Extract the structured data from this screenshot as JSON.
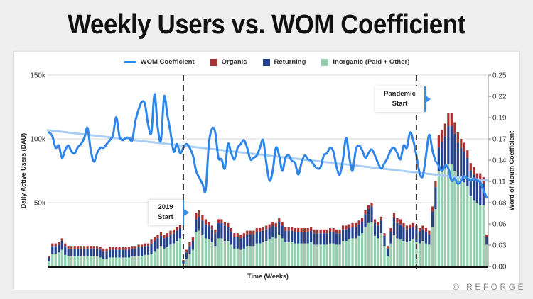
{
  "title": "Weekly Users vs. WOM Coefficient",
  "legend": [
    {
      "label": "WOM Coefficient",
      "type": "line",
      "color": "#2f86e8"
    },
    {
      "label": "Organic",
      "type": "box",
      "color": "#a83232"
    },
    {
      "label": "Returning",
      "type": "box",
      "color": "#24428c"
    },
    {
      "label": "Inorganic (Paid + Other)",
      "type": "box",
      "color": "#95cfae"
    }
  ],
  "annotations": {
    "start_2019": {
      "line1": "2019",
      "line2": "Start"
    },
    "pandemic": {
      "line1": "Pandemic",
      "line2": "Start"
    }
  },
  "brand": "© REFORGE",
  "chart_data": {
    "type": "bar",
    "title": "Weekly Users vs. WOM Coefficient",
    "xlabel": "Time (Weeks)",
    "ylabel": "Daily Active Users (DAU)",
    "y2label": "Word of Mouth Coefficient",
    "ylim": [
      0,
      150000
    ],
    "y2lim": [
      0,
      0.25
    ],
    "yticks": [
      "150k",
      "100k",
      "50k"
    ],
    "y2ticks": [
      "0.25",
      "0.22",
      "0.19",
      "0.17",
      "0.14",
      "0.11",
      "0.08",
      "0.06",
      "0.03",
      "0.00"
    ],
    "grid": true,
    "legend_position": "top",
    "markers": [
      {
        "label": "2019 Start",
        "week_index": 42
      },
      {
        "label": "Pandemic Start",
        "week_index": 115
      }
    ],
    "colors": {
      "wom": "#2f86e8",
      "trend": "#a9cdf3",
      "organic": "#a83232",
      "returning": "#24428c",
      "inorganic": "#95cfae"
    },
    "series": [
      {
        "name": "Inorganic (Paid + Other)",
        "values": [
          4000,
          10000,
          10000,
          11000,
          13000,
          9000,
          8000,
          8000,
          8000,
          8000,
          8000,
          8000,
          8000,
          8000,
          8000,
          8000,
          7000,
          6000,
          6000,
          7000,
          7000,
          7000,
          7000,
          7000,
          7000,
          7000,
          8000,
          8000,
          8000,
          8000,
          9000,
          9000,
          10000,
          12000,
          14000,
          16000,
          14000,
          15000,
          17000,
          18000,
          20000,
          22000,
          2000,
          6000,
          10000,
          13000,
          27000,
          28000,
          25000,
          22000,
          21000,
          19000,
          16000,
          22000,
          22000,
          20000,
          20000,
          17000,
          14000,
          14000,
          13000,
          14000,
          16000,
          16000,
          16000,
          18000,
          18000,
          19000,
          20000,
          21000,
          23000,
          22000,
          25000,
          22000,
          19000,
          19000,
          19000,
          18000,
          18000,
          18000,
          18000,
          18000,
          19000,
          17000,
          17000,
          17000,
          17000,
          17000,
          18000,
          18000,
          17000,
          17000,
          20000,
          20000,
          21000,
          22000,
          22000,
          24000,
          26000,
          31000,
          34000,
          35000,
          24000,
          22000,
          26000,
          16000,
          8000,
          18000,
          25000,
          22000,
          21000,
          20000,
          19000,
          20000,
          21000,
          19000,
          18000,
          20000,
          18000,
          17000,
          31000,
          45000,
          75000,
          74000,
          77000,
          80000,
          80000,
          75000,
          70000,
          68000,
          66000,
          63000,
          55000,
          52000,
          50000,
          48000,
          48000,
          17000
        ],
        "values_note": "approximate, read from bar heights"
      },
      {
        "name": "Returning",
        "values": [
          3000,
          6000,
          6000,
          6000,
          7000,
          7000,
          6000,
          6000,
          6000,
          6000,
          6000,
          6000,
          6000,
          6000,
          6000,
          6000,
          6000,
          6000,
          6000,
          6000,
          6000,
          6000,
          6000,
          6000,
          6000,
          6000,
          6000,
          6000,
          7000,
          7000,
          7000,
          7000,
          8000,
          8000,
          8000,
          8000,
          8000,
          8000,
          8000,
          8000,
          8000,
          8000,
          2000,
          5000,
          6000,
          7000,
          10000,
          11000,
          11000,
          11000,
          11000,
          10000,
          10000,
          12000,
          12000,
          12000,
          11000,
          10000,
          9000,
          9000,
          9000,
          9000,
          9000,
          9000,
          9000,
          9000,
          9000,
          9000,
          9000,
          9000,
          9000,
          9000,
          10000,
          10000,
          9000,
          9000,
          9000,
          9000,
          9000,
          9000,
          9000,
          9000,
          9000,
          9000,
          9000,
          9000,
          9000,
          9000,
          9000,
          9000,
          9000,
          9000,
          9000,
          9000,
          9000,
          9000,
          9000,
          9000,
          9000,
          10000,
          11000,
          12000,
          10000,
          10000,
          10000,
          8000,
          6000,
          9000,
          13000,
          12000,
          12000,
          11000,
          10000,
          10000,
          10000,
          10000,
          9000,
          9000,
          9000,
          8000,
          12000,
          17000,
          18000,
          24000,
          25000,
          30000,
          30000,
          29000,
          27000,
          25000,
          24000,
          22000,
          20000,
          20000,
          18000,
          19000,
          17000,
          6000
        ]
      },
      {
        "name": "Organic",
        "values": [
          1000,
          2000,
          2000,
          2000,
          2000,
          2000,
          2000,
          2000,
          2000,
          2000,
          2000,
          2000,
          2000,
          2000,
          2000,
          2000,
          2000,
          2000,
          2000,
          2000,
          2000,
          2000,
          2000,
          2000,
          2000,
          2000,
          2000,
          2000,
          2000,
          2000,
          2000,
          2000,
          3000,
          3000,
          3000,
          3000,
          3000,
          3000,
          3000,
          3000,
          3000,
          3000,
          1000,
          2000,
          3000,
          3000,
          5000,
          5000,
          4000,
          4000,
          3000,
          3000,
          3000,
          3000,
          3000,
          3000,
          3000,
          3000,
          3000,
          3000,
          3000,
          3000,
          3000,
          3000,
          3000,
          3000,
          3000,
          3000,
          3000,
          3000,
          3000,
          3000,
          3000,
          3000,
          3000,
          3000,
          3000,
          3000,
          3000,
          3000,
          3000,
          3000,
          3000,
          3000,
          3000,
          3000,
          3000,
          3000,
          3000,
          3000,
          3000,
          3000,
          3000,
          3000,
          3000,
          3000,
          3000,
          3000,
          3000,
          3000,
          3000,
          3000,
          3000,
          3000,
          3000,
          2000,
          2000,
          3000,
          4000,
          4000,
          4000,
          3000,
          3000,
          3000,
          3000,
          3000,
          3000,
          3000,
          3000,
          3000,
          4000,
          5000,
          10000,
          9000,
          10000,
          10000,
          10000,
          9000,
          8000,
          7000,
          7000,
          6000,
          6000,
          6000,
          5000,
          6000,
          5000,
          2000
        ]
      },
      {
        "name": "WOM Coefficient",
        "axis": "right",
        "values": [
          0.175,
          0.17,
          0.155,
          0.158,
          0.142,
          0.152,
          0.158,
          0.15,
          0.148,
          0.156,
          0.16,
          0.168,
          0.181,
          0.152,
          0.137,
          0.148,
          0.155,
          0.155,
          0.16,
          0.165,
          0.172,
          0.195,
          0.17,
          0.165,
          0.168,
          0.168,
          0.165,
          0.19,
          0.205,
          0.215,
          0.212,
          0.185,
          0.175,
          0.225,
          0.181,
          0.165,
          0.222,
          0.198,
          0.175,
          0.15,
          0.16,
          0.148,
          0.155,
          0.16,
          0.155,
          0.145,
          0.125,
          0.116,
          0.108,
          0.1,
          0.16,
          0.18,
          0.175,
          0.142,
          0.14,
          0.128,
          0.16,
          0.148,
          0.14,
          0.155,
          0.16,
          0.165,
          0.155,
          0.14,
          0.142,
          0.145,
          0.155,
          0.165,
          0.135,
          0.112,
          0.125,
          0.155,
          0.145,
          0.125,
          0.142,
          0.145,
          0.138,
          0.135,
          0.12,
          0.135,
          0.145,
          0.14,
          0.138,
          0.132,
          0.128,
          0.13,
          0.145,
          0.148,
          0.155,
          0.15,
          0.13,
          0.12,
          0.14,
          0.168,
          0.142,
          0.125,
          0.152,
          0.158,
          0.152,
          0.142,
          0.148,
          0.153,
          0.145,
          0.135,
          0.128,
          0.135,
          0.142,
          0.152,
          0.155,
          0.148,
          0.14,
          0.158,
          0.155,
          0.175,
          0.165,
          0.145,
          0.122,
          0.118,
          0.145,
          0.172,
          0.152,
          0.138,
          0.132,
          0.125,
          0.132,
          0.128,
          0.112,
          0.115,
          0.108,
          0.112,
          0.118,
          0.115,
          0.112,
          0.115,
          0.112,
          0.11,
          0.1,
          0.09
        ]
      },
      {
        "name": "WOM Trend",
        "axis": "right",
        "start": 0.178,
        "end": 0.112
      }
    ]
  }
}
